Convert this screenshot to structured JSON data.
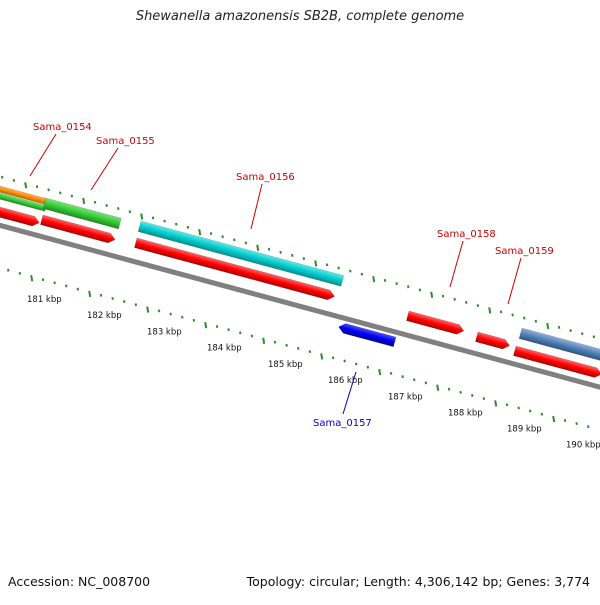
{
  "title": "Shewanella amazonensis SB2B, complete genome",
  "footer": {
    "accession": "Accession: NC_008700",
    "stats": "Topology: circular; Length: 4,306,142 bp; Genes: 3,774"
  },
  "genes": [
    {
      "label": "Sama_0154",
      "color": "#cc0000"
    },
    {
      "label": "Sama_0155",
      "color": "#cc0000"
    },
    {
      "label": "Sama_0156",
      "color": "#cc0000"
    },
    {
      "label": "Sama_0157",
      "color": "#0000cc"
    },
    {
      "label": "Sama_0158",
      "color": "#cc0000"
    },
    {
      "label": "Sama_0159",
      "color": "#cc0000"
    }
  ],
  "kbp_labels": [
    "181 kbp",
    "182 kbp",
    "183 kbp",
    "184 kbp",
    "185 kbp",
    "186 kbp",
    "187 kbp",
    "188 kbp",
    "189 kbp",
    "190 kbp"
  ],
  "colors": {
    "cds_forward": "#ff0000",
    "cds_reverse": "#0000ee",
    "feature_orange": "#ff8c00",
    "feature_green": "#33cc33",
    "feature_cyan": "#00cccc",
    "feature_steelblue": "#4f7fb5",
    "backbone": "#808080",
    "tick": "#2e8b2e"
  }
}
